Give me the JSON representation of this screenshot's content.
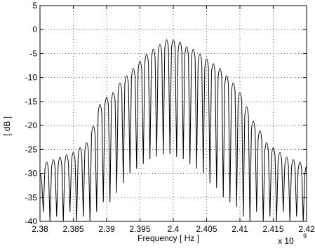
{
  "chart_data": {
    "type": "line",
    "xlabel": "Frequency [ Hz ]",
    "ylabel": "[ dB ]",
    "x_exponent_label": "x 10",
    "x_exponent_power": "9",
    "xlim": [
      2380000000,
      2420000000
    ],
    "ylim": [
      -40,
      5
    ],
    "x_tick_labels": [
      "2.38",
      "2.385",
      "2.39",
      "2.395",
      "2.4",
      "2.405",
      "2.41",
      "2.415",
      "2.42"
    ],
    "x_tick_values": [
      2380000000,
      2385000000,
      2390000000,
      2395000000,
      2400000000,
      2405000000,
      2410000000,
      2415000000,
      2420000000
    ],
    "y_tick_labels": [
      "5",
      "0",
      "-5",
      "-10",
      "-15",
      "-20",
      "-25",
      "-30",
      "-35",
      "-40"
    ],
    "y_tick_values": [
      5,
      0,
      -5,
      -10,
      -15,
      -20,
      -25,
      -30,
      -35,
      -40
    ],
    "grid": true,
    "series": [
      {
        "line_color": "#000000",
        "peak_frequencies_hz": [
          2380000000,
          2381000000,
          2382000000,
          2383000000,
          2384000000,
          2385000000,
          2386000000,
          2387000000,
          2388000000,
          2389000000,
          2390000000,
          2391000000,
          2392000000,
          2393000000,
          2394000000,
          2395000000,
          2396000000,
          2397000000,
          2398000000,
          2399000000,
          2400000000,
          2401000000,
          2402000000,
          2403000000,
          2404000000,
          2405000000,
          2406000000,
          2407000000,
          2408000000,
          2409000000,
          2410000000,
          2411000000,
          2412000000,
          2413000000,
          2414000000,
          2415000000,
          2416000000,
          2417000000,
          2418000000,
          2419000000,
          2420000000
        ],
        "peak_values_db": [
          -28.5,
          -26,
          -25.5,
          -25,
          -24.5,
          -24,
          -23,
          -22,
          -18.5,
          -14,
          -12.5,
          -11.5,
          -9.5,
          -8,
          -6.5,
          -5,
          -3.5,
          -2.5,
          -1.5,
          -0.5,
          -0.5,
          -1,
          -2,
          -2.5,
          -3.5,
          -4.5,
          -5.5,
          -6.5,
          -8,
          -9.5,
          -11.5,
          -14.5,
          -17.5,
          -19.5,
          -22,
          -23,
          -24,
          -25,
          -25.5,
          -26,
          -27
        ],
        "trough_values_db": [
          -40,
          -38,
          -40,
          -39,
          -40,
          -38,
          -40,
          -39,
          -40,
          -38,
          -36,
          -36,
          -34,
          -32,
          -30,
          -29,
          -28,
          -27,
          -26.5,
          -26,
          -26,
          -26.5,
          -27,
          -28,
          -29,
          -30,
          -32,
          -33,
          -35,
          -36,
          -37,
          -39,
          -40,
          -38,
          -40,
          -39,
          -40,
          -38,
          -40,
          -39,
          -40
        ]
      }
    ]
  }
}
